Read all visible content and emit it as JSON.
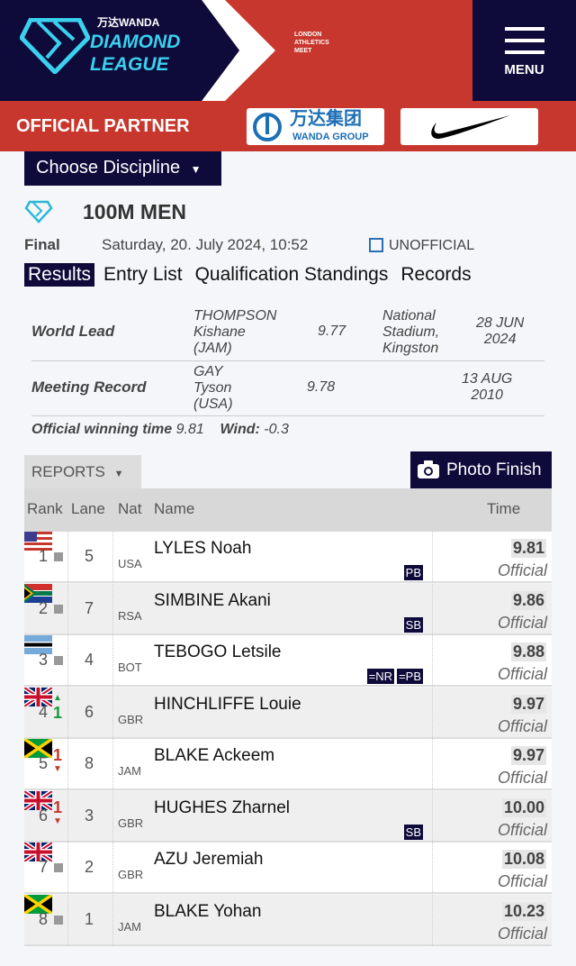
{
  "header": {
    "brand_top": "万达WANDA",
    "brand_line1": "DIAMOND",
    "brand_line2": "LEAGUE",
    "meet": [
      "LONDON",
      "ATHLETICS",
      "MEET"
    ],
    "menu_label": "MENU"
  },
  "partner": {
    "label": "OFFICIAL PARTNER",
    "wanda_cn": "万达集团",
    "wanda_en": "WANDA GROUP"
  },
  "choose_discipline": "Choose Discipline",
  "event": {
    "title": "100M MEN",
    "round": "Final",
    "datetime": "Saturday, 20. July 2024, 10:52",
    "status": "UNOFFICIAL"
  },
  "tabs": [
    {
      "label": "Results",
      "active": true
    },
    {
      "label": "Entry List"
    },
    {
      "label": "Qualification Standings"
    },
    {
      "label": "Records"
    }
  ],
  "records": [
    {
      "label": "World Lead",
      "athlete": [
        "THOMPSON",
        "Kishane",
        "(JAM)"
      ],
      "mark": "9.77",
      "venue": [
        "National",
        "Stadium,",
        "Kingston"
      ],
      "date": [
        "28 JUN",
        "2024"
      ]
    },
    {
      "label": "Meeting Record",
      "athlete": [
        "GAY",
        "Tyson",
        "(USA)"
      ],
      "mark": "9.78",
      "venue": [],
      "date": [
        "13 AUG",
        "2010"
      ]
    }
  ],
  "winning": {
    "label": "Official winning time",
    "value": "9.81",
    "wind_label": "Wind:",
    "wind": "-0.3"
  },
  "reports_label": "REPORTS",
  "photo_finish_label": "Photo Finish",
  "table": {
    "headers": {
      "rank": "Rank",
      "lane": "Lane",
      "nat": "Nat",
      "name": "Name",
      "time": "Time"
    },
    "rows": [
      {
        "rank": "1",
        "change": "same",
        "lane": "5",
        "nat": "USA",
        "name": "LYLES Noah",
        "badges": [
          "PB"
        ],
        "time": "9.81",
        "status": "Official"
      },
      {
        "rank": "2",
        "change": "same",
        "lane": "7",
        "nat": "RSA",
        "name": "SIMBINE Akani",
        "badges": [
          "SB"
        ],
        "time": "9.86",
        "status": "Official"
      },
      {
        "rank": "3",
        "change": "same",
        "lane": "4",
        "nat": "BOT",
        "name": "TEBOGO Letsile",
        "badges": [
          "=NR",
          "=PB"
        ],
        "time": "9.88",
        "status": "Official"
      },
      {
        "rank": "4",
        "change": "up",
        "change_value": "1",
        "lane": "6",
        "nat": "GBR",
        "name": "HINCHLIFFE Louie",
        "badges": [],
        "time": "9.97",
        "status": "Official"
      },
      {
        "rank": "5",
        "change": "down",
        "change_value": "1",
        "lane": "8",
        "nat": "JAM",
        "name": "BLAKE Ackeem",
        "badges": [],
        "time": "9.97",
        "status": "Official"
      },
      {
        "rank": "6",
        "change": "down",
        "change_value": "1",
        "lane": "3",
        "nat": "GBR",
        "name": "HUGHES Zharnel",
        "badges": [
          "SB"
        ],
        "time": "10.00",
        "status": "Official"
      },
      {
        "rank": "7",
        "change": "same",
        "lane": "2",
        "nat": "GBR",
        "name": "AZU Jeremiah",
        "badges": [],
        "time": "10.08",
        "status": "Official"
      },
      {
        "rank": "8",
        "change": "same",
        "lane": "1",
        "nat": "JAM",
        "name": "BLAKE Yohan",
        "badges": [],
        "time": "10.23",
        "status": "Official"
      }
    ]
  },
  "colors": {
    "navy": "#0e0a3a",
    "red": "#c8372d",
    "cyan": "#3ad0ee",
    "up": "#1a9a3a",
    "down": "#c0392b"
  }
}
